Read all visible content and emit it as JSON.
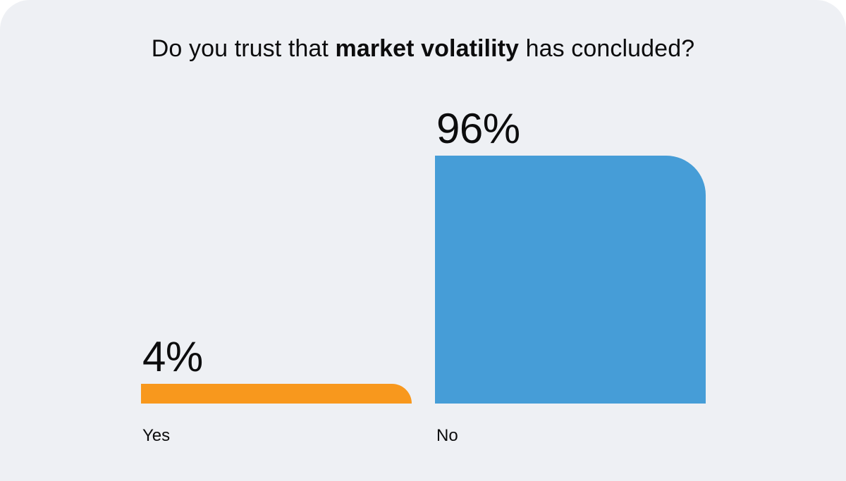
{
  "page": {
    "background": "#FFFFFF",
    "card_background": "#EEF0F4",
    "text_color": "#0C0C0D"
  },
  "title": {
    "prefix": "Do you trust that ",
    "emphasis": "market volatility",
    "suffix": " has concluded?"
  },
  "chart_data": {
    "type": "bar",
    "title": "Do you trust that market volatility has concluded?",
    "categories": [
      "Yes",
      "No"
    ],
    "values": [
      4,
      96
    ],
    "value_labels": [
      "4%",
      "96%"
    ],
    "unit": "%",
    "bar_colors": [
      "#F8981D",
      "#469DD7"
    ],
    "xlabel": "",
    "ylabel": "",
    "ylim": [
      0,
      100
    ],
    "grid": false,
    "legend": "none",
    "orientation": "vertical",
    "value_label_position": "above-bar-left-aligned",
    "category_label_position": "below-bar-left-aligned"
  }
}
